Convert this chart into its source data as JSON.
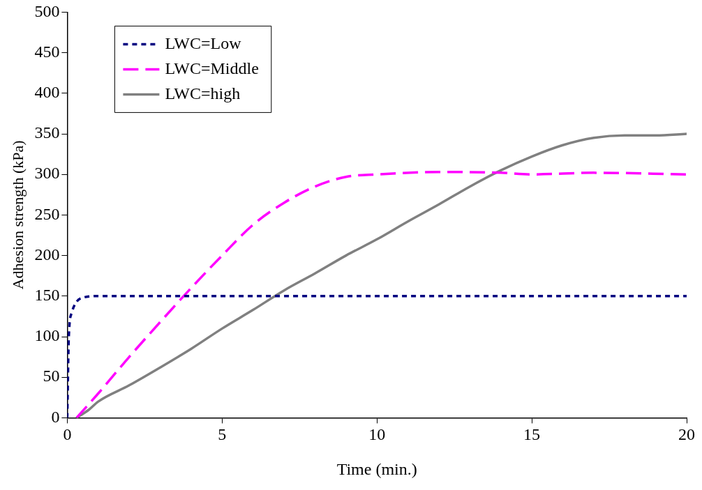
{
  "chart_data": {
    "type": "line",
    "xlabel": "Time (min.)",
    "ylabel": "Adhesion strength (kPa)",
    "xlim": [
      0,
      20
    ],
    "xticks": [
      0,
      5,
      10,
      15,
      20
    ],
    "ylim": [
      0,
      500
    ],
    "yticks": [
      0,
      50,
      100,
      150,
      200,
      250,
      300,
      350,
      400,
      450,
      500
    ],
    "grid": false,
    "legend": "top left",
    "marker": "none",
    "series": [
      {
        "name": "LWC=Low",
        "color": "#000080",
        "line_style": "dotted",
        "x": [
          0,
          0.05,
          0.15,
          0.3,
          0.5,
          1,
          2,
          5,
          10,
          15,
          20
        ],
        "values": [
          0,
          100,
          130,
          143,
          148,
          150,
          150,
          150,
          150,
          150,
          150
        ]
      },
      {
        "name": "LWC=Middle",
        "color": "#ff00ff",
        "line_style": "dashed",
        "x": [
          0.3,
          1,
          2,
          3,
          4,
          5,
          6,
          7,
          8,
          9,
          10,
          12,
          14,
          15,
          17,
          20
        ],
        "values": [
          0,
          30,
          75,
          118,
          160,
          200,
          238,
          265,
          285,
          297,
          300,
          303,
          302,
          300,
          302,
          300
        ]
      },
      {
        "name": "LWC=high",
        "color": "#808080",
        "line_style": "solid",
        "x": [
          0.3,
          0.7,
          1,
          2,
          3,
          4,
          5,
          6,
          7,
          8,
          9,
          10,
          11,
          12,
          13,
          14,
          15,
          16,
          17,
          18,
          19,
          20
        ],
        "values": [
          0,
          10,
          20,
          40,
          62,
          85,
          110,
          133,
          157,
          178,
          200,
          220,
          242,
          263,
          285,
          305,
          322,
          336,
          345,
          348,
          348,
          350
        ]
      }
    ]
  }
}
